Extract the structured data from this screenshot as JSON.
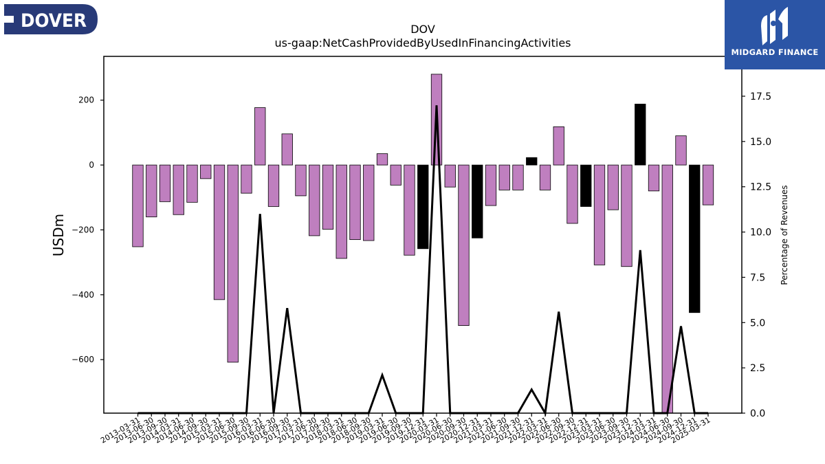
{
  "logos": {
    "left_text": "DOVER",
    "right_text": "MIDGARD FINANCE"
  },
  "colors": {
    "bar_positive_series": "#bf7fbf",
    "bar_highlight": "#000000",
    "line": "#000000",
    "right_logo_bg": "#2b55a6",
    "left_logo_bg": "#283a78"
  },
  "chart_data": {
    "type": "bar",
    "title": "DOV",
    "subtitle": "us-gaap:NetCashProvidedByUsedInFinancingActivities",
    "ylabel": "USDm",
    "y2label": "Percentage of Revenues",
    "ylim": [
      -765,
      335
    ],
    "y2lim": [
      0,
      19.7
    ],
    "yticks": [
      200,
      0,
      -200,
      -400,
      -600
    ],
    "ytick_labels": [
      "200",
      "0",
      "−200",
      "−400",
      "−600"
    ],
    "y2ticks": [
      0,
      2.5,
      5,
      7.5,
      10,
      12.5,
      15,
      17.5
    ],
    "y2tick_labels": [
      "0.0",
      "2.5",
      "5.0",
      "7.5",
      "10.0",
      "12.5",
      "15.0",
      "17.5"
    ],
    "categories": [
      "2013-03-31",
      "2013-06-30",
      "2013-09-30",
      "2014-03-31",
      "2014-06-30",
      "2014-09-30",
      "2015-03-31",
      "2015-06-30",
      "2015-09-30",
      "2016-03-31",
      "2016-06-30",
      "2016-09-30",
      "2017-03-31",
      "2017-06-30",
      "2017-09-30",
      "2018-03-31",
      "2018-06-30",
      "2018-09-30",
      "2019-03-31",
      "2019-06-30",
      "2019-09-30",
      "2019-12-31",
      "2020-03-31",
      "2020-06-30",
      "2020-09-30",
      "2020-12-31",
      "2021-03-31",
      "2021-06-30",
      "2021-09-30",
      "2021-12-31",
      "2022-03-31",
      "2022-06-30",
      "2022-09-30",
      "2022-12-31",
      "2023-03-31",
      "2023-06-30",
      "2023-09-30",
      "2023-12-31",
      "2024-03-31",
      "2024-06-30",
      "2024-09-30",
      "2024-12-31",
      "2025-03-31"
    ],
    "values": [
      -252,
      -160,
      -113,
      -153,
      -115,
      -42,
      -415,
      -608,
      -87,
      177,
      -128,
      96,
      -95,
      -218,
      -198,
      -288,
      -230,
      -233,
      35,
      -62,
      -278,
      -258,
      280,
      -68,
      -495,
      -225,
      -125,
      -77,
      -77,
      23,
      -77,
      118,
      -180,
      -128,
      -308,
      -138,
      -313,
      188,
      -80,
      -765,
      90,
      -455,
      -123
    ],
    "highlight": [
      false,
      false,
      false,
      false,
      false,
      false,
      false,
      false,
      false,
      false,
      false,
      false,
      false,
      false,
      false,
      false,
      false,
      false,
      false,
      false,
      false,
      true,
      false,
      false,
      false,
      true,
      false,
      false,
      false,
      true,
      false,
      false,
      false,
      true,
      false,
      false,
      false,
      true,
      false,
      false,
      false,
      true,
      false
    ],
    "pct_of_revenues": [
      0,
      0,
      0,
      0,
      0,
      0,
      0,
      0,
      0,
      11.0,
      0,
      5.8,
      0,
      0,
      0,
      0,
      0,
      0,
      2.1,
      0,
      0,
      0,
      17.0,
      0,
      0,
      0,
      0,
      0,
      0,
      1.3,
      0,
      5.6,
      0,
      0,
      0,
      0,
      0,
      9.0,
      0,
      0,
      4.8,
      0,
      0
    ],
    "grid": false
  }
}
